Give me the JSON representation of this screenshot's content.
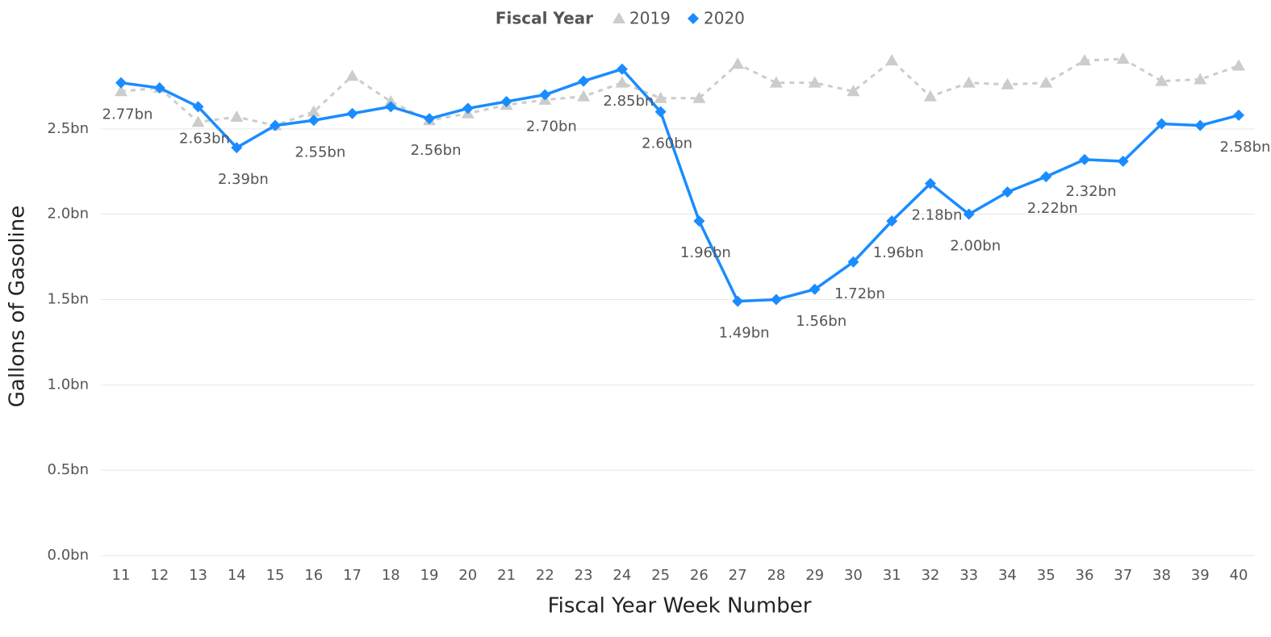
{
  "chart_data": {
    "type": "line",
    "legend_title": "Fiscal Year",
    "x_label": "Fiscal Year Week Number",
    "y_label": "Gallons of Gasoline",
    "categories": [
      "11",
      "12",
      "13",
      "14",
      "15",
      "16",
      "17",
      "18",
      "19",
      "20",
      "21",
      "22",
      "23",
      "24",
      "25",
      "26",
      "27",
      "28",
      "29",
      "30",
      "31",
      "32",
      "33",
      "34",
      "35",
      "36",
      "37",
      "38",
      "39",
      "40"
    ],
    "ylim": [
      0,
      3.0
    ],
    "yticks": [
      {
        "value": 0,
        "label": "0.0bn"
      },
      {
        "value": 0.5,
        "label": "0.5bn"
      },
      {
        "value": 1.0,
        "label": "1.0bn"
      },
      {
        "value": 1.5,
        "label": "1.5bn"
      },
      {
        "value": 2.0,
        "label": "2.0bn"
      },
      {
        "value": 2.5,
        "label": "2.5bn"
      }
    ],
    "grid": true,
    "legend": "top",
    "series": [
      {
        "name": "2019",
        "color": "#cccccc",
        "marker": "triangle",
        "dash": true,
        "values": [
          2.72,
          2.74,
          2.54,
          2.57,
          2.52,
          2.6,
          2.81,
          2.66,
          2.55,
          2.59,
          2.64,
          2.67,
          2.69,
          2.77,
          2.68,
          2.68,
          2.88,
          2.77,
          2.77,
          2.72,
          2.9,
          2.69,
          2.77,
          2.76,
          2.77,
          2.9,
          2.91,
          2.78,
          2.79,
          2.87
        ]
      },
      {
        "name": "2020",
        "color": "#1a8cff",
        "marker": "diamond",
        "dash": false,
        "values": [
          2.77,
          2.74,
          2.63,
          2.39,
          2.52,
          2.55,
          2.59,
          2.63,
          2.56,
          2.62,
          2.66,
          2.7,
          2.78,
          2.85,
          2.6,
          1.96,
          1.49,
          1.5,
          1.56,
          1.72,
          1.96,
          2.18,
          2.0,
          2.13,
          2.22,
          2.32,
          2.31,
          2.53,
          2.52,
          2.58
        ],
        "value_labels": [
          "2.77bn",
          null,
          "2.63bn",
          "2.39bn",
          null,
          "2.55bn",
          null,
          null,
          "2.56bn",
          null,
          null,
          "2.70bn",
          null,
          "2.85bn",
          "2.60bn",
          "1.96bn",
          "1.49bn",
          null,
          "1.56bn",
          "1.72bn",
          "1.96bn",
          "2.18bn",
          "2.00bn",
          null,
          "2.22bn",
          "2.32bn",
          null,
          null,
          null,
          "2.58bn"
        ]
      }
    ]
  }
}
